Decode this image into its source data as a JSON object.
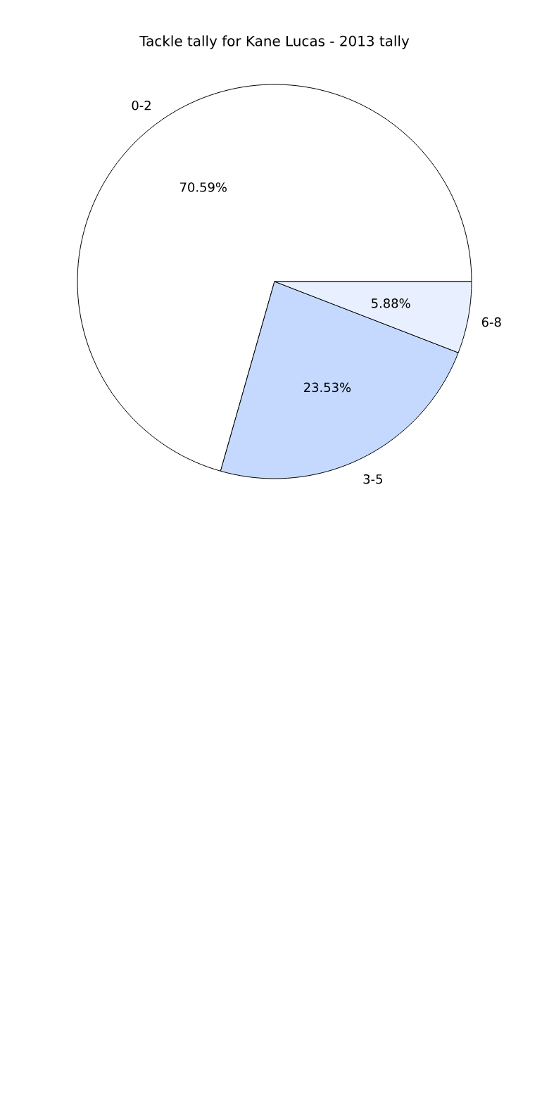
{
  "chart_data": {
    "type": "pie",
    "title": "Tackle tally for Kane Lucas - 2013 tally",
    "categories": [
      "0-2",
      "3-5",
      "6-8"
    ],
    "values": [
      70.59,
      23.53,
      5.88
    ],
    "colors": [
      "#ffffff",
      "#c5d9ff",
      "#e8f0ff"
    ],
    "value_labels": [
      "70.59%",
      "23.53%",
      "5.88%"
    ]
  }
}
